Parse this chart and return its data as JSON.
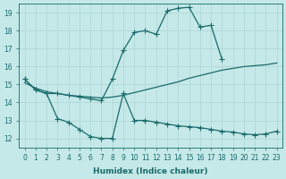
{
  "xlabel": "Humidex (Indice chaleur)",
  "bg_color": "#c5e8e8",
  "grid_color": "#b0d8d8",
  "line_color": "#1a6b6b",
  "xlim": [
    -0.5,
    23.5
  ],
  "ylim": [
    11.5,
    19.5
  ],
  "yticks": [
    12,
    13,
    14,
    15,
    16,
    17,
    18,
    19
  ],
  "xticks": [
    0,
    1,
    2,
    3,
    4,
    5,
    6,
    7,
    8,
    9,
    10,
    11,
    12,
    13,
    14,
    15,
    16,
    17,
    18,
    19,
    20,
    21,
    22,
    23
  ],
  "line1_x": [
    0,
    1,
    2,
    3,
    4,
    5,
    6,
    7,
    8,
    9,
    10,
    11,
    12,
    13,
    14,
    15,
    16,
    17,
    18
  ],
  "line1_y": [
    15.3,
    14.7,
    14.5,
    14.5,
    14.4,
    14.3,
    14.2,
    14.1,
    15.3,
    16.9,
    17.9,
    18.0,
    17.8,
    19.1,
    19.25,
    19.3,
    18.2,
    18.3,
    16.4
  ],
  "line2_x": [
    0,
    1,
    2,
    3,
    4,
    5,
    6,
    7,
    8,
    9,
    10,
    11,
    12,
    13,
    14,
    15,
    16,
    17,
    18,
    19,
    20,
    21,
    22,
    23
  ],
  "line2_y": [
    15.1,
    14.8,
    14.6,
    14.5,
    14.4,
    14.35,
    14.3,
    14.25,
    14.3,
    14.4,
    14.55,
    14.7,
    14.85,
    15.0,
    15.15,
    15.35,
    15.5,
    15.65,
    15.8,
    15.9,
    16.0,
    16.05,
    16.1,
    16.2
  ],
  "line3_x": [
    0,
    1,
    2,
    3,
    4,
    5,
    6,
    7,
    8,
    9,
    10,
    11,
    12,
    13,
    14,
    15,
    16,
    17,
    18,
    19,
    20,
    21,
    22,
    23
  ],
  "line3_y": [
    15.3,
    14.7,
    14.5,
    13.1,
    12.9,
    12.5,
    12.1,
    12.0,
    12.0,
    14.5,
    13.0,
    13.0,
    12.9,
    12.8,
    12.7,
    12.65,
    12.6,
    12.5,
    12.4,
    12.35,
    12.25,
    12.2,
    12.25,
    12.4
  ]
}
